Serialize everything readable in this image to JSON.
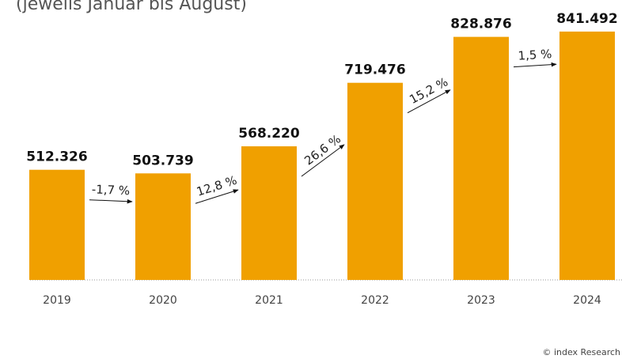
{
  "chart_data": {
    "type": "bar",
    "subtitle": "(jeweils Januar bis August)",
    "categories": [
      "2019",
      "2020",
      "2021",
      "2022",
      "2023",
      "2024"
    ],
    "values": [
      512326,
      503739,
      568220,
      719476,
      828876,
      841492
    ],
    "value_labels": [
      "512.326",
      "503.739",
      "568.220",
      "719.476",
      "828.876",
      "841.492"
    ],
    "color": "#f0a000",
    "ylim": [
      250000,
      850000
    ],
    "annotations": [
      "-1,7 %",
      "12,8 %",
      "26,6 %",
      "15,2 %",
      "1,5 %"
    ],
    "source": "© index Research"
  }
}
